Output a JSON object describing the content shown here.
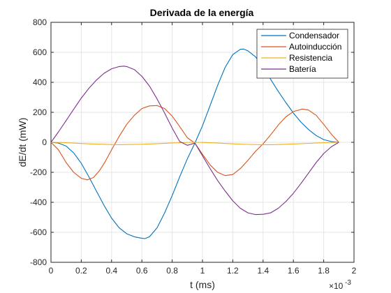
{
  "chart_data": {
    "type": "line",
    "title": "Derivada de la energía",
    "xlabel": "t (ms)",
    "ylabel": "dE/dt (mW)",
    "x_exponent_label": "×10",
    "x_exponent_power": "-3",
    "xlim": [
      0,
      2
    ],
    "ylim": [
      -800,
      800
    ],
    "xticks": [
      0,
      0.2,
      0.4,
      0.6,
      0.8,
      1,
      1.2,
      1.4,
      1.6,
      1.8,
      2
    ],
    "yticks": [
      -800,
      -600,
      -400,
      -200,
      0,
      200,
      400,
      600,
      800
    ],
    "grid": true,
    "legend_position": "top-right",
    "series": [
      {
        "name": "Condensador",
        "color": "#0072BD",
        "points": [
          [
            0,
            0
          ],
          [
            0.05,
            -5
          ],
          [
            0.1,
            -25
          ],
          [
            0.15,
            -70
          ],
          [
            0.2,
            -140
          ],
          [
            0.25,
            -230
          ],
          [
            0.3,
            -325
          ],
          [
            0.35,
            -420
          ],
          [
            0.4,
            -505
          ],
          [
            0.45,
            -570
          ],
          [
            0.5,
            -610
          ],
          [
            0.55,
            -630
          ],
          [
            0.6,
            -640
          ],
          [
            0.62,
            -642
          ],
          [
            0.65,
            -630
          ],
          [
            0.7,
            -570
          ],
          [
            0.75,
            -470
          ],
          [
            0.8,
            -355
          ],
          [
            0.85,
            -230
          ],
          [
            0.9,
            -110
          ],
          [
            0.95,
            -5
          ],
          [
            1.0,
            110
          ],
          [
            1.05,
            245
          ],
          [
            1.1,
            380
          ],
          [
            1.15,
            500
          ],
          [
            1.2,
            585
          ],
          [
            1.25,
            620
          ],
          [
            1.27,
            622
          ],
          [
            1.3,
            610
          ],
          [
            1.35,
            570
          ],
          [
            1.4,
            500
          ],
          [
            1.45,
            420
          ],
          [
            1.5,
            340
          ],
          [
            1.55,
            265
          ],
          [
            1.6,
            195
          ],
          [
            1.65,
            135
          ],
          [
            1.7,
            85
          ],
          [
            1.75,
            45
          ],
          [
            1.8,
            18
          ],
          [
            1.85,
            5
          ],
          [
            1.9,
            0
          ]
        ]
      },
      {
        "name": "Autoinducción",
        "color": "#D95319",
        "points": [
          [
            0,
            0
          ],
          [
            0.05,
            -50
          ],
          [
            0.1,
            -135
          ],
          [
            0.15,
            -200
          ],
          [
            0.2,
            -240
          ],
          [
            0.24,
            -250
          ],
          [
            0.28,
            -235
          ],
          [
            0.32,
            -190
          ],
          [
            0.36,
            -125
          ],
          [
            0.4,
            -50
          ],
          [
            0.45,
            40
          ],
          [
            0.5,
            120
          ],
          [
            0.55,
            180
          ],
          [
            0.6,
            225
          ],
          [
            0.65,
            243
          ],
          [
            0.7,
            245
          ],
          [
            0.75,
            225
          ],
          [
            0.8,
            175
          ],
          [
            0.85,
            105
          ],
          [
            0.9,
            30
          ],
          [
            0.95,
            -5
          ],
          [
            1.0,
            -80
          ],
          [
            1.05,
            -150
          ],
          [
            1.1,
            -200
          ],
          [
            1.15,
            -222
          ],
          [
            1.2,
            -215
          ],
          [
            1.25,
            -175
          ],
          [
            1.3,
            -120
          ],
          [
            1.35,
            -60
          ],
          [
            1.4,
            -10
          ],
          [
            1.45,
            50
          ],
          [
            1.5,
            115
          ],
          [
            1.55,
            170
          ],
          [
            1.6,
            205
          ],
          [
            1.66,
            222
          ],
          [
            1.7,
            215
          ],
          [
            1.75,
            180
          ],
          [
            1.8,
            120
          ],
          [
            1.85,
            55
          ],
          [
            1.9,
            0
          ]
        ]
      },
      {
        "name": "Resistencia",
        "color": "#EDB120",
        "points": [
          [
            0,
            0
          ],
          [
            0.1,
            -3
          ],
          [
            0.2,
            -8
          ],
          [
            0.3,
            -12
          ],
          [
            0.4,
            -15
          ],
          [
            0.45,
            -16
          ],
          [
            0.5,
            -15
          ],
          [
            0.6,
            -13
          ],
          [
            0.7,
            -9
          ],
          [
            0.8,
            -4
          ],
          [
            0.9,
            -1
          ],
          [
            0.95,
            0
          ],
          [
            1.0,
            -1
          ],
          [
            1.1,
            -5
          ],
          [
            1.2,
            -10
          ],
          [
            1.3,
            -14
          ],
          [
            1.4,
            -16
          ],
          [
            1.45,
            -16
          ],
          [
            1.5,
            -15
          ],
          [
            1.6,
            -11
          ],
          [
            1.7,
            -7
          ],
          [
            1.8,
            -3
          ],
          [
            1.9,
            0
          ]
        ]
      },
      {
        "name": "Batería",
        "color": "#7E2F8E",
        "points": [
          [
            0,
            0
          ],
          [
            0.05,
            70
          ],
          [
            0.1,
            145
          ],
          [
            0.15,
            220
          ],
          [
            0.2,
            295
          ],
          [
            0.25,
            360
          ],
          [
            0.3,
            415
          ],
          [
            0.35,
            460
          ],
          [
            0.4,
            490
          ],
          [
            0.45,
            505
          ],
          [
            0.48,
            508
          ],
          [
            0.5,
            505
          ],
          [
            0.55,
            485
          ],
          [
            0.6,
            440
          ],
          [
            0.65,
            375
          ],
          [
            0.7,
            290
          ],
          [
            0.75,
            195
          ],
          [
            0.8,
            95
          ],
          [
            0.85,
            5
          ],
          [
            0.9,
            -20
          ],
          [
            0.95,
            -5
          ],
          [
            1.0,
            -90
          ],
          [
            1.05,
            -175
          ],
          [
            1.1,
            -255
          ],
          [
            1.15,
            -325
          ],
          [
            1.2,
            -390
          ],
          [
            1.25,
            -440
          ],
          [
            1.3,
            -470
          ],
          [
            1.35,
            -482
          ],
          [
            1.4,
            -480
          ],
          [
            1.45,
            -470
          ],
          [
            1.5,
            -440
          ],
          [
            1.55,
            -395
          ],
          [
            1.6,
            -340
          ],
          [
            1.65,
            -275
          ],
          [
            1.7,
            -205
          ],
          [
            1.75,
            -135
          ],
          [
            1.8,
            -75
          ],
          [
            1.85,
            -30
          ],
          [
            1.9,
            0
          ]
        ]
      }
    ]
  }
}
